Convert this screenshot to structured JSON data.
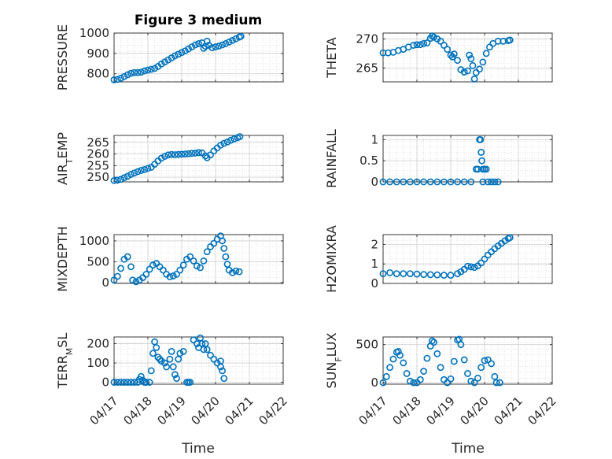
{
  "figure": {
    "title": "Figure 3 medium",
    "xlabel": "Time",
    "x_ticks": [
      "04/17",
      "04/18",
      "04/19",
      "04/20",
      "04/21",
      "04/22"
    ],
    "marker_color": "#0072BD"
  },
  "chart_data": [
    {
      "type": "scatter",
      "ylabel": "PRESSURE",
      "ylabel_parts": [
        {
          "t": "PRESSURE",
          "s": false
        }
      ],
      "xlim": [
        0,
        5
      ],
      "ylim": [
        760,
        1000
      ],
      "yticks": [
        800,
        900,
        1000
      ],
      "grid": true,
      "points": [
        [
          0,
          770
        ],
        [
          0.1,
          772
        ],
        [
          0.2,
          778
        ],
        [
          0.3,
          786
        ],
        [
          0.4,
          795
        ],
        [
          0.5,
          802
        ],
        [
          0.6,
          806
        ],
        [
          0.7,
          806
        ],
        [
          0.8,
          808
        ],
        [
          0.9,
          814
        ],
        [
          1.0,
          818
        ],
        [
          1.1,
          822
        ],
        [
          1.2,
          826
        ],
        [
          1.3,
          836
        ],
        [
          1.4,
          848
        ],
        [
          1.5,
          858
        ],
        [
          1.6,
          868
        ],
        [
          1.7,
          878
        ],
        [
          1.8,
          888
        ],
        [
          1.9,
          896
        ],
        [
          2.0,
          904
        ],
        [
          2.1,
          912
        ],
        [
          2.2,
          922
        ],
        [
          2.3,
          932
        ],
        [
          2.4,
          942
        ],
        [
          2.5,
          948
        ],
        [
          2.6,
          952
        ],
        [
          2.65,
          925
        ],
        [
          2.7,
          935
        ],
        [
          2.75,
          960
        ],
        [
          2.8,
          940
        ],
        [
          2.9,
          928
        ],
        [
          3.0,
          932
        ],
        [
          3.1,
          936
        ],
        [
          3.2,
          942
        ],
        [
          3.3,
          948
        ],
        [
          3.4,
          956
        ],
        [
          3.5,
          964
        ],
        [
          3.6,
          972
        ],
        [
          3.7,
          980
        ],
        [
          3.75,
          984
        ]
      ]
    },
    {
      "type": "scatter",
      "ylabel": "THETA",
      "ylabel_parts": [
        {
          "t": "THETA",
          "s": false
        }
      ],
      "xlim": [
        0,
        5
      ],
      "ylim": [
        262.6,
        271
      ],
      "yticks": [
        265,
        270
      ],
      "grid": true,
      "points": [
        [
          0,
          267.6
        ],
        [
          0.15,
          267.6
        ],
        [
          0.3,
          267.7
        ],
        [
          0.45,
          268
        ],
        [
          0.6,
          268.2
        ],
        [
          0.75,
          268.6
        ],
        [
          0.9,
          268.9
        ],
        [
          1.0,
          269.0
        ],
        [
          1.1,
          269.0
        ],
        [
          1.2,
          269.2
        ],
        [
          1.3,
          269.3
        ],
        [
          1.4,
          270.1
        ],
        [
          1.45,
          270.5
        ],
        [
          1.5,
          270.3
        ],
        [
          1.6,
          270.0
        ],
        [
          1.7,
          269.6
        ],
        [
          1.8,
          268.9
        ],
        [
          1.9,
          268.2
        ],
        [
          2.0,
          267.2
        ],
        [
          2.05,
          266.9
        ],
        [
          2.1,
          267.4
        ],
        [
          2.2,
          266.3
        ],
        [
          2.3,
          264.7
        ],
        [
          2.4,
          264.3
        ],
        [
          2.5,
          264.5
        ],
        [
          2.55,
          267.2
        ],
        [
          2.6,
          266.6
        ],
        [
          2.65,
          265.4
        ],
        [
          2.7,
          263.1
        ],
        [
          2.75,
          264.2
        ],
        [
          2.85,
          264.8
        ],
        [
          2.95,
          266.0
        ],
        [
          3.05,
          267.5
        ],
        [
          3.15,
          268.6
        ],
        [
          3.25,
          269.2
        ],
        [
          3.4,
          269.6
        ],
        [
          3.55,
          269.6
        ],
        [
          3.7,
          269.7
        ],
        [
          3.75,
          269.8
        ]
      ]
    },
    {
      "type": "scatter",
      "ylabel": "AIR_TEMP",
      "ylabel_parts": [
        {
          "t": "AIR",
          "s": false
        },
        {
          "t": "T",
          "s": true
        },
        {
          "t": "EMP",
          "s": false
        }
      ],
      "xlim": [
        0,
        5
      ],
      "ylim": [
        248,
        268
      ],
      "yticks": [
        250,
        255,
        260,
        265
      ],
      "grid": true,
      "points": [
        [
          0,
          248.6
        ],
        [
          0.1,
          248.7
        ],
        [
          0.2,
          249.1
        ],
        [
          0.3,
          249.8
        ],
        [
          0.4,
          250.4
        ],
        [
          0.5,
          251.2
        ],
        [
          0.6,
          251.8
        ],
        [
          0.7,
          252.4
        ],
        [
          0.8,
          252.9
        ],
        [
          0.9,
          253.3
        ],
        [
          1.0,
          253.8
        ],
        [
          1.1,
          254.3
        ],
        [
          1.2,
          255.6
        ],
        [
          1.3,
          257.0
        ],
        [
          1.4,
          258.2
        ],
        [
          1.5,
          259.0
        ],
        [
          1.6,
          259.6
        ],
        [
          1.7,
          259.8
        ],
        [
          1.8,
          259.7
        ],
        [
          1.9,
          259.8
        ],
        [
          2.0,
          259.9
        ],
        [
          2.1,
          260.0
        ],
        [
          2.2,
          260.1
        ],
        [
          2.3,
          260.3
        ],
        [
          2.4,
          260.4
        ],
        [
          2.5,
          260.6
        ],
        [
          2.6,
          260.5
        ],
        [
          2.7,
          259.2
        ],
        [
          2.75,
          258.4
        ],
        [
          2.85,
          259.6
        ],
        [
          2.95,
          261.3
        ],
        [
          3.05,
          262.6
        ],
        [
          3.15,
          263.8
        ],
        [
          3.25,
          264.6
        ],
        [
          3.35,
          265.2
        ],
        [
          3.45,
          265.9
        ],
        [
          3.55,
          266.5
        ],
        [
          3.65,
          267.0
        ],
        [
          3.72,
          267.5
        ]
      ]
    },
    {
      "type": "scatter",
      "ylabel": "RAINFALL",
      "ylabel_parts": [
        {
          "t": "RAINFALL",
          "s": false
        }
      ],
      "xlim": [
        0,
        5
      ],
      "ylim": [
        0,
        1.1
      ],
      "yticks": [
        0,
        0.5,
        1
      ],
      "grid": true,
      "points": [
        [
          0,
          0
        ],
        [
          0.2,
          0
        ],
        [
          0.4,
          0
        ],
        [
          0.6,
          0
        ],
        [
          0.8,
          0
        ],
        [
          1.0,
          0
        ],
        [
          1.2,
          0
        ],
        [
          1.4,
          0
        ],
        [
          1.6,
          0
        ],
        [
          1.8,
          0
        ],
        [
          2.0,
          0
        ],
        [
          2.2,
          0
        ],
        [
          2.4,
          0
        ],
        [
          2.6,
          0
        ],
        [
          2.75,
          0.3
        ],
        [
          2.8,
          0.3
        ],
        [
          2.85,
          1.0
        ],
        [
          2.88,
          1.0
        ],
        [
          2.9,
          0.7
        ],
        [
          2.92,
          0.5
        ],
        [
          2.95,
          0.3
        ],
        [
          3.0,
          0.3
        ],
        [
          3.05,
          0.3
        ],
        [
          2.95,
          0
        ],
        [
          3.1,
          0
        ],
        [
          3.2,
          0
        ],
        [
          3.3,
          0
        ],
        [
          3.4,
          0
        ]
      ]
    },
    {
      "type": "scatter",
      "ylabel": "MIXDEPTH",
      "ylabel_parts": [
        {
          "t": "MIXDEPTH",
          "s": false
        }
      ],
      "xlim": [
        0,
        5
      ],
      "ylim": [
        -20,
        1150
      ],
      "yticks": [
        0,
        500,
        1000
      ],
      "grid": true,
      "points": [
        [
          0,
          60
        ],
        [
          0.1,
          150
        ],
        [
          0.2,
          340
        ],
        [
          0.3,
          560
        ],
        [
          0.4,
          620
        ],
        [
          0.5,
          380
        ],
        [
          0.55,
          60
        ],
        [
          0.65,
          20
        ],
        [
          0.75,
          60
        ],
        [
          0.85,
          120
        ],
        [
          0.95,
          200
        ],
        [
          1.05,
          320
        ],
        [
          1.15,
          420
        ],
        [
          1.25,
          460
        ],
        [
          1.35,
          380
        ],
        [
          1.45,
          300
        ],
        [
          1.55,
          200
        ],
        [
          1.65,
          140
        ],
        [
          1.75,
          160
        ],
        [
          1.85,
          200
        ],
        [
          1.95,
          300
        ],
        [
          2.05,
          420
        ],
        [
          2.15,
          560
        ],
        [
          2.25,
          620
        ],
        [
          2.35,
          520
        ],
        [
          2.45,
          400
        ],
        [
          2.55,
          360
        ],
        [
          2.65,
          520
        ],
        [
          2.75,
          740
        ],
        [
          2.85,
          860
        ],
        [
          2.95,
          940
        ],
        [
          3.05,
          1040
        ],
        [
          3.15,
          1120
        ],
        [
          3.2,
          1000
        ],
        [
          3.25,
          820
        ],
        [
          3.3,
          620
        ],
        [
          3.35,
          440
        ],
        [
          3.4,
          300
        ],
        [
          3.5,
          240
        ],
        [
          3.6,
          280
        ],
        [
          3.7,
          260
        ]
      ]
    },
    {
      "type": "scatter",
      "ylabel": "H2OMIXRA",
      "ylabel_parts": [
        {
          "t": "H2OMIXRA",
          "s": false
        }
      ],
      "xlim": [
        0,
        5
      ],
      "ylim": [
        0,
        2.5
      ],
      "yticks": [
        0,
        1,
        2
      ],
      "grid": true,
      "points": [
        [
          0,
          0.5
        ],
        [
          0.2,
          0.55
        ],
        [
          0.4,
          0.5
        ],
        [
          0.6,
          0.5
        ],
        [
          0.8,
          0.5
        ],
        [
          1.0,
          0.48
        ],
        [
          1.2,
          0.46
        ],
        [
          1.4,
          0.45
        ],
        [
          1.6,
          0.44
        ],
        [
          1.8,
          0.42
        ],
        [
          2.0,
          0.42
        ],
        [
          2.2,
          0.5
        ],
        [
          2.3,
          0.6
        ],
        [
          2.4,
          0.72
        ],
        [
          2.5,
          0.88
        ],
        [
          2.6,
          0.85
        ],
        [
          2.7,
          0.82
        ],
        [
          2.8,
          0.9
        ],
        [
          2.9,
          1.05
        ],
        [
          3.0,
          1.25
        ],
        [
          3.1,
          1.45
        ],
        [
          3.2,
          1.62
        ],
        [
          3.3,
          1.78
        ],
        [
          3.4,
          1.92
        ],
        [
          3.5,
          2.05
        ],
        [
          3.6,
          2.18
        ],
        [
          3.7,
          2.3
        ],
        [
          3.75,
          2.35
        ]
      ]
    },
    {
      "type": "scatter",
      "ylabel": "TERR_MSL",
      "ylabel_parts": [
        {
          "t": "TERR",
          "s": false
        },
        {
          "t": "M",
          "s": true
        },
        {
          "t": "SL",
          "s": false
        }
      ],
      "xlim": [
        0,
        5
      ],
      "ylim": [
        -10,
        235
      ],
      "yticks": [
        0,
        100,
        200
      ],
      "grid": true,
      "points": [
        [
          0,
          0
        ],
        [
          0.1,
          0
        ],
        [
          0.2,
          0
        ],
        [
          0.3,
          0
        ],
        [
          0.4,
          0
        ],
        [
          0.5,
          0
        ],
        [
          0.6,
          0
        ],
        [
          0.7,
          0
        ],
        [
          0.75,
          15
        ],
        [
          0.8,
          30
        ],
        [
          0.85,
          10
        ],
        [
          0.9,
          0
        ],
        [
          0.95,
          0
        ],
        [
          1.05,
          0
        ],
        [
          1.1,
          60
        ],
        [
          1.15,
          150
        ],
        [
          1.2,
          210
        ],
        [
          1.25,
          180
        ],
        [
          1.3,
          130
        ],
        [
          1.35,
          120
        ],
        [
          1.4,
          110
        ],
        [
          1.5,
          100
        ],
        [
          1.55,
          80
        ],
        [
          1.65,
          120
        ],
        [
          1.7,
          160
        ],
        [
          1.75,
          80
        ],
        [
          1.8,
          40
        ],
        [
          1.85,
          20
        ],
        [
          1.9,
          120
        ],
        [
          1.95,
          150
        ],
        [
          2.05,
          160
        ],
        [
          2.15,
          0
        ],
        [
          2.2,
          0
        ],
        [
          2.25,
          0
        ],
        [
          2.35,
          220
        ],
        [
          2.45,
          200
        ],
        [
          2.5,
          180
        ],
        [
          2.55,
          230
        ],
        [
          2.6,
          200
        ],
        [
          2.65,
          170
        ],
        [
          2.7,
          200
        ],
        [
          2.75,
          170
        ],
        [
          2.85,
          140
        ],
        [
          2.95,
          120
        ],
        [
          3.05,
          100
        ],
        [
          3.15,
          80
        ],
        [
          3.2,
          60
        ],
        [
          3.25,
          20
        ],
        [
          3.15,
          110
        ]
      ]
    },
    {
      "type": "scatter",
      "ylabel": "SUN_FLUX",
      "ylabel_parts": [
        {
          "t": "SUN",
          "s": false
        },
        {
          "t": "F",
          "s": true
        },
        {
          "t": "LUX",
          "s": false
        }
      ],
      "xlim": [
        0,
        5
      ],
      "ylim": [
        -20,
        600
      ],
      "yticks": [
        0,
        500
      ],
      "grid": true,
      "points": [
        [
          0,
          0
        ],
        [
          0.1,
          80
        ],
        [
          0.2,
          200
        ],
        [
          0.3,
          310
        ],
        [
          0.4,
          400
        ],
        [
          0.45,
          410
        ],
        [
          0.5,
          360
        ],
        [
          0.6,
          260
        ],
        [
          0.7,
          120
        ],
        [
          0.8,
          20
        ],
        [
          0.9,
          0
        ],
        [
          1.0,
          0
        ],
        [
          1.1,
          40
        ],
        [
          1.2,
          150
        ],
        [
          1.3,
          320
        ],
        [
          1.4,
          480
        ],
        [
          1.45,
          550
        ],
        [
          1.5,
          530
        ],
        [
          1.6,
          380
        ],
        [
          1.7,
          200
        ],
        [
          1.8,
          40
        ],
        [
          1.9,
          0
        ],
        [
          2.0,
          50
        ],
        [
          2.1,
          280
        ],
        [
          2.2,
          560
        ],
        [
          2.25,
          570
        ],
        [
          2.3,
          500
        ],
        [
          2.4,
          300
        ],
        [
          2.5,
          120
        ],
        [
          2.6,
          20
        ],
        [
          2.7,
          0
        ],
        [
          2.8,
          60
        ],
        [
          2.9,
          200
        ],
        [
          3.0,
          290
        ],
        [
          3.1,
          300
        ],
        [
          3.2,
          250
        ],
        [
          3.3,
          80
        ],
        [
          3.35,
          0
        ],
        [
          3.45,
          0
        ]
      ]
    }
  ]
}
